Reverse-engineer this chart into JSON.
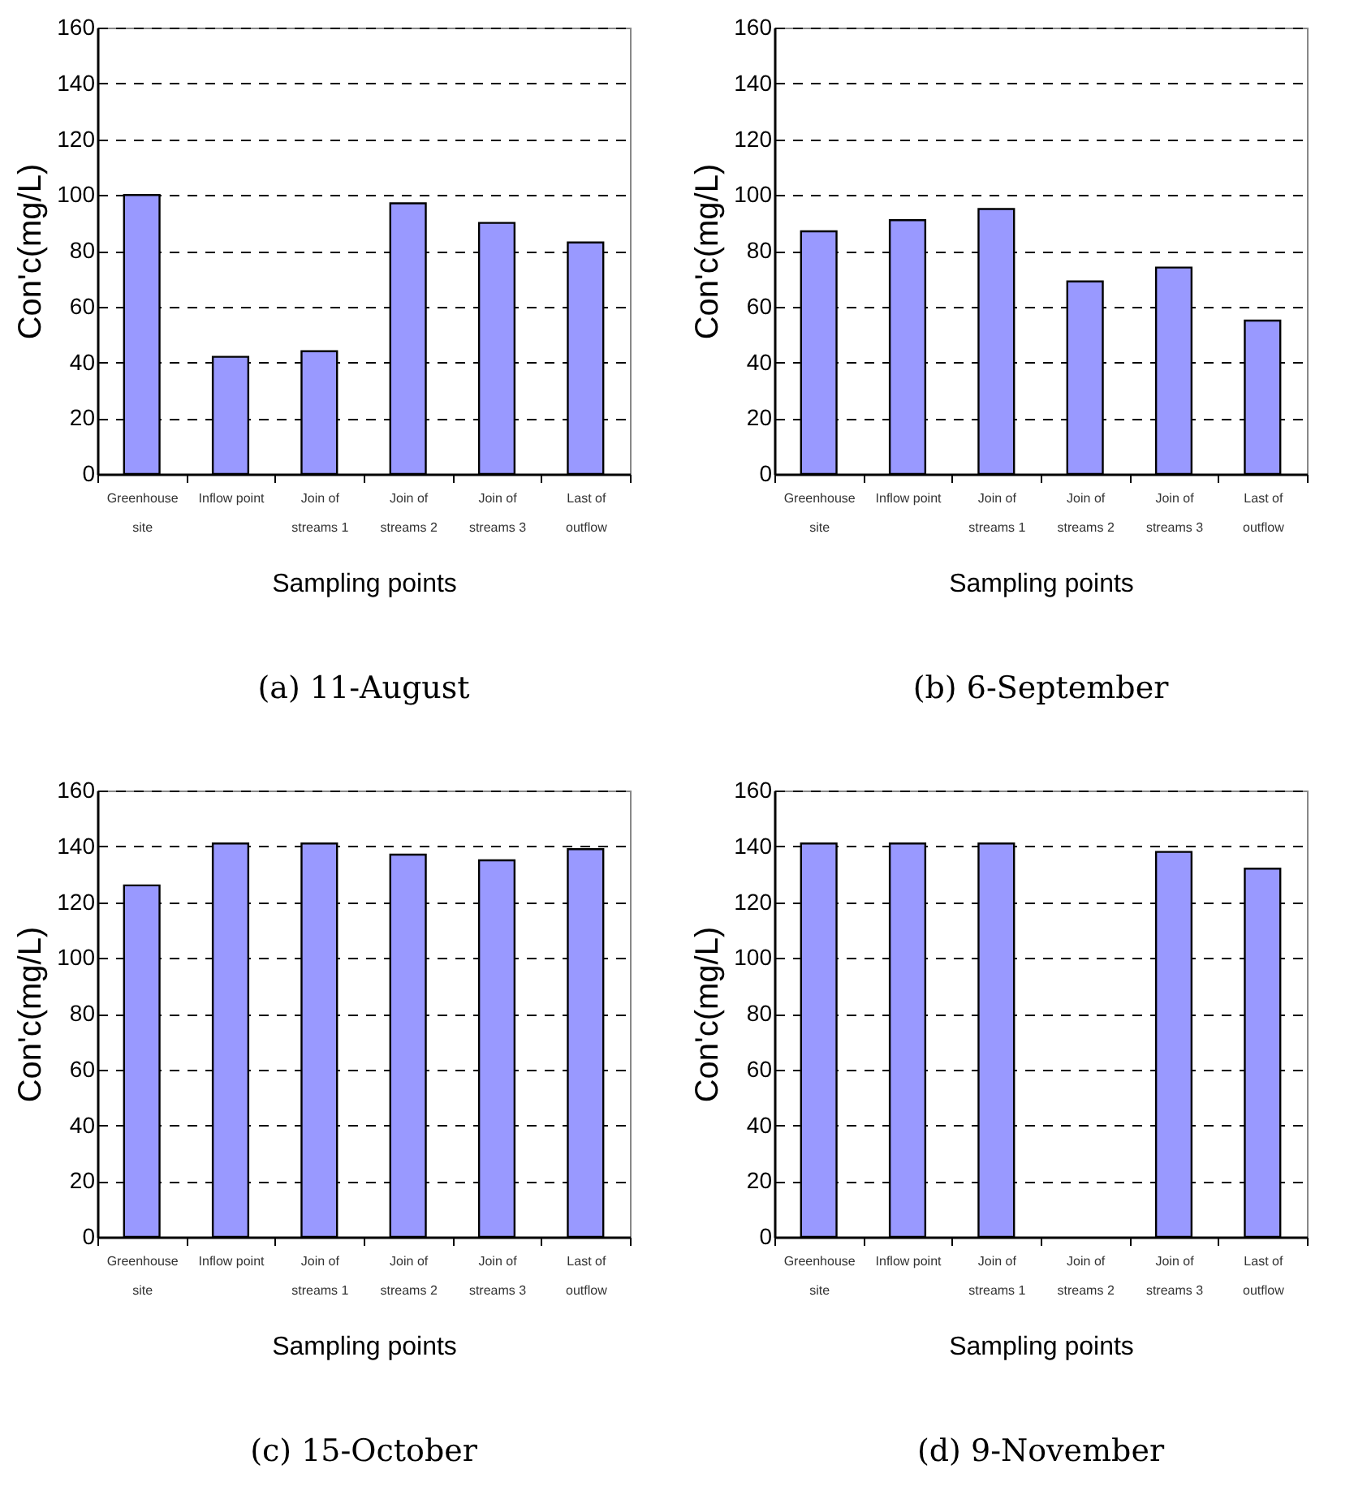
{
  "chart_data": [
    {
      "type": "bar",
      "title": "(a)  11-August",
      "xlabel": "Sampling points",
      "ylabel": "Con'c(mg/L)",
      "categories": [
        "Greenhouse site",
        "Inflow point",
        "Join of streams 1",
        "Join of streams 2",
        "Join of streams 3",
        "Last of outflow"
      ],
      "values": [
        100,
        42,
        44,
        97,
        90,
        83
      ],
      "color": "#9999ff",
      "ylim": [
        0,
        160
      ],
      "yticks": [
        0,
        20,
        40,
        60,
        80,
        100,
        120,
        140,
        160
      ],
      "grid": "y"
    },
    {
      "type": "bar",
      "title": "(b)  6-September",
      "xlabel": "Sampling points",
      "ylabel": "Con'c(mg/L)",
      "categories": [
        "Greenhouse site",
        "Inflow point",
        "Join of streams 1",
        "Join of streams 2",
        "Join of streams 3",
        "Last of outflow"
      ],
      "values": [
        87,
        91,
        95,
        69,
        74,
        55
      ],
      "color": "#9999ff",
      "ylim": [
        0,
        160
      ],
      "yticks": [
        0,
        20,
        40,
        60,
        80,
        100,
        120,
        140,
        160
      ],
      "grid": "y"
    },
    {
      "type": "bar",
      "title": "(c)  15-October",
      "xlabel": "Sampling points",
      "ylabel": "Con'c(mg/L)",
      "categories": [
        "Greenhouse site",
        "Inflow point",
        "Join of streams 1",
        "Join of streams 2",
        "Join of streams 3",
        "Last of outflow"
      ],
      "values": [
        126,
        141,
        141,
        137,
        135,
        139
      ],
      "color": "#9999ff",
      "ylim": [
        0,
        160
      ],
      "yticks": [
        0,
        20,
        40,
        60,
        80,
        100,
        120,
        140,
        160
      ],
      "grid": "y"
    },
    {
      "type": "bar",
      "title": "(d)  9-November",
      "xlabel": "Sampling points",
      "ylabel": "Con'c(mg/L)",
      "categories": [
        "Greenhouse site",
        "Inflow point",
        "Join of streams 1",
        "Join of streams 2",
        "Join of streams 3",
        "Last of outflow"
      ],
      "values": [
        141,
        141,
        141,
        null,
        138,
        132
      ],
      "color": "#9999ff",
      "ylim": [
        0,
        160
      ],
      "yticks": [
        0,
        20,
        40,
        60,
        80,
        100,
        120,
        140,
        160
      ],
      "grid": "y"
    }
  ]
}
